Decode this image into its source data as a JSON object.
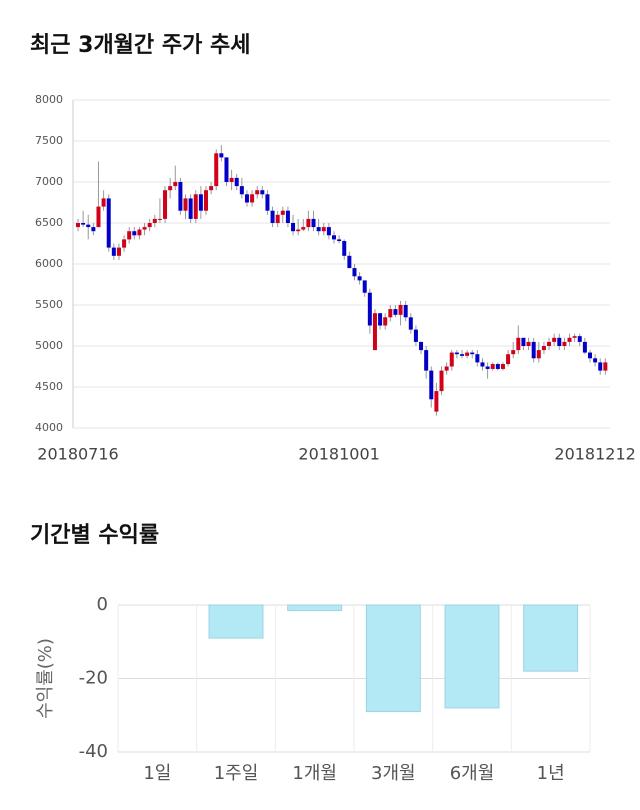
{
  "chart_data": [
    {
      "type": "candlestick",
      "title": "최근 3개월간 주가 추세",
      "categories": [
        "20180716",
        null,
        null,
        null,
        null,
        null,
        null,
        null,
        null,
        null,
        null,
        null,
        null,
        null,
        null,
        null,
        null,
        null,
        null,
        null,
        null,
        null,
        null,
        null,
        null,
        null,
        null,
        null,
        null,
        null,
        null,
        null,
        null,
        null,
        null,
        null,
        null,
        null,
        null,
        null,
        null,
        null,
        null,
        null,
        null,
        null,
        null,
        null,
        null,
        null,
        null,
        "20181001",
        null,
        null,
        null,
        null,
        null,
        null,
        null,
        null,
        null,
        null,
        null,
        null,
        null,
        null,
        null,
        null,
        null,
        null,
        null,
        null,
        null,
        null,
        null,
        null,
        null,
        null,
        null,
        null,
        null,
        null,
        null,
        null,
        null,
        null,
        null,
        null,
        null,
        null,
        null,
        null,
        null,
        null,
        null,
        null,
        null,
        null,
        null,
        null,
        null,
        "20181212",
        null,
        null
      ],
      "candles": [
        [
          6450,
          6550,
          6400,
          6500
        ],
        [
          6500,
          6650,
          6450,
          6480
        ],
        [
          6480,
          6600,
          6300,
          6450
        ],
        [
          6450,
          6500,
          6350,
          6400
        ],
        [
          6450,
          7250,
          6450,
          6700
        ],
        [
          6700,
          6900,
          6650,
          6800
        ],
        [
          6800,
          6850,
          6150,
          6200
        ],
        [
          6200,
          6250,
          6050,
          6100
        ],
        [
          6100,
          6250,
          6050,
          6200
        ],
        [
          6200,
          6350,
          6150,
          6300
        ],
        [
          6300,
          6450,
          6250,
          6400
        ],
        [
          6400,
          6450,
          6300,
          6350
        ],
        [
          6350,
          6450,
          6300,
          6420
        ],
        [
          6420,
          6500,
          6350,
          6450
        ],
        [
          6450,
          6550,
          6400,
          6500
        ],
        [
          6500,
          6600,
          6450,
          6550
        ],
        [
          6550,
          6800,
          6500,
          6550
        ],
        [
          6550,
          6950,
          6500,
          6900
        ],
        [
          6900,
          7050,
          6800,
          6950
        ],
        [
          6950,
          7200,
          6900,
          7000
        ],
        [
          7000,
          7050,
          6600,
          6650
        ],
        [
          6650,
          6850,
          6550,
          6800
        ],
        [
          6800,
          6850,
          6500,
          6550
        ],
        [
          6550,
          6900,
          6500,
          6850
        ],
        [
          6850,
          6950,
          6550,
          6650
        ],
        [
          6650,
          6950,
          6600,
          6900
        ],
        [
          6900,
          7000,
          6850,
          6950
        ],
        [
          6950,
          7400,
          6900,
          7350
        ],
        [
          7350,
          7450,
          7250,
          7300
        ],
        [
          7300,
          7300,
          6950,
          7000
        ],
        [
          7000,
          7150,
          6900,
          7050
        ],
        [
          7050,
          7100,
          6900,
          6950
        ],
        [
          6950,
          7050,
          6800,
          6850
        ],
        [
          6850,
          6900,
          6700,
          6750
        ],
        [
          6750,
          6900,
          6700,
          6850
        ],
        [
          6850,
          6950,
          6800,
          6900
        ],
        [
          6900,
          6950,
          6800,
          6850
        ],
        [
          6850,
          6900,
          6600,
          6650
        ],
        [
          6650,
          6700,
          6450,
          6500
        ],
        [
          6500,
          6650,
          6450,
          6600
        ],
        [
          6600,
          6700,
          6500,
          6650
        ],
        [
          6650,
          6700,
          6450,
          6500
        ],
        [
          6500,
          6600,
          6350,
          6400
        ],
        [
          6400,
          6550,
          6350,
          6420
        ],
        [
          6420,
          6550,
          6400,
          6450
        ],
        [
          6450,
          6650,
          6400,
          6550
        ],
        [
          6550,
          6650,
          6400,
          6450
        ],
        [
          6450,
          6550,
          6350,
          6400
        ],
        [
          6400,
          6500,
          6350,
          6450
        ],
        [
          6450,
          6500,
          6300,
          6350
        ],
        [
          6350,
          6400,
          6250,
          6300
        ],
        [
          6300,
          6350,
          6250,
          6280
        ],
        [
          6280,
          6300,
          6050,
          6100
        ],
        [
          6100,
          6150,
          5950,
          5950
        ],
        [
          5950,
          6000,
          5800,
          5850
        ],
        [
          5850,
          5900,
          5750,
          5800
        ],
        [
          5800,
          5800,
          5600,
          5650
        ],
        [
          5650,
          5700,
          5150,
          5250
        ],
        [
          4950,
          5450,
          4950,
          5400
        ],
        [
          5400,
          5400,
          5200,
          5250
        ],
        [
          5250,
          5400,
          5200,
          5350
        ],
        [
          5350,
          5500,
          5300,
          5450
        ],
        [
          5450,
          5500,
          5350,
          5380
        ],
        [
          5380,
          5550,
          5250,
          5500
        ],
        [
          5500,
          5550,
          5300,
          5350
        ],
        [
          5350,
          5400,
          5150,
          5200
        ],
        [
          5200,
          5250,
          5000,
          5050
        ],
        [
          5050,
          5050,
          4900,
          4950
        ],
        [
          4950,
          5000,
          4600,
          4700
        ],
        [
          4700,
          4750,
          4250,
          4350
        ],
        [
          4200,
          4550,
          4150,
          4450
        ],
        [
          4450,
          4750,
          4400,
          4700
        ],
        [
          4700,
          4800,
          4650,
          4750
        ],
        [
          4750,
          4950,
          4700,
          4920
        ],
        [
          4920,
          4950,
          4850,
          4900
        ],
        [
          4900,
          4950,
          4850,
          4880
        ],
        [
          4880,
          4950,
          4850,
          4920
        ],
        [
          4920,
          4950,
          4850,
          4900
        ],
        [
          4900,
          4950,
          4750,
          4800
        ],
        [
          4800,
          4850,
          4700,
          4750
        ],
        [
          4750,
          4800,
          4600,
          4720
        ],
        [
          4720,
          4800,
          4700,
          4780
        ],
        [
          4780,
          4800,
          4700,
          4720
        ],
        [
          4720,
          4800,
          4700,
          4780
        ],
        [
          4780,
          4950,
          4750,
          4900
        ],
        [
          4900,
          5050,
          4850,
          4950
        ],
        [
          4950,
          5250,
          4900,
          5100
        ],
        [
          5100,
          5100,
          4950,
          5000
        ],
        [
          5000,
          5100,
          4950,
          5050
        ],
        [
          5050,
          5100,
          4800,
          4850
        ],
        [
          4850,
          5050,
          4800,
          4950
        ],
        [
          4950,
          5050,
          4900,
          5000
        ],
        [
          5000,
          5100,
          4950,
          5050
        ],
        [
          5050,
          5150,
          5000,
          5100
        ],
        [
          5100,
          5150,
          4950,
          5000
        ],
        [
          5000,
          5100,
          4950,
          5050
        ],
        [
          5050,
          5150,
          5000,
          5100
        ],
        [
          5100,
          5150,
          5050,
          5120
        ],
        [
          5120,
          5150,
          5000,
          5050
        ],
        [
          5050,
          5100,
          4900,
          4920
        ],
        [
          4920,
          4950,
          4800,
          4850
        ],
        [
          4850,
          4900,
          4750,
          4800
        ],
        [
          4800,
          4850,
          4650,
          4700
        ],
        [
          4700,
          4850,
          4650,
          4800
        ]
      ],
      "up_color": "#d0021b",
      "down_color": "#0000c8",
      "ylim": [
        4000,
        8000
      ],
      "yticks": [
        4000,
        4500,
        5000,
        5500,
        6000,
        6500,
        7000,
        7500,
        8000
      ],
      "grid": true
    },
    {
      "type": "bar",
      "title": "기간별 수익률",
      "y_label": "수익률(%)",
      "categories": [
        "1일",
        "1주일",
        "1개월",
        "3개월",
        "6개월",
        "1년"
      ],
      "values": [
        0,
        -9,
        -1.5,
        -29,
        -28,
        -18
      ],
      "color": "#b3e9f5",
      "ylim": [
        -40,
        0
      ],
      "yticks": [
        0,
        -20,
        -40
      ],
      "grid": true
    }
  ]
}
